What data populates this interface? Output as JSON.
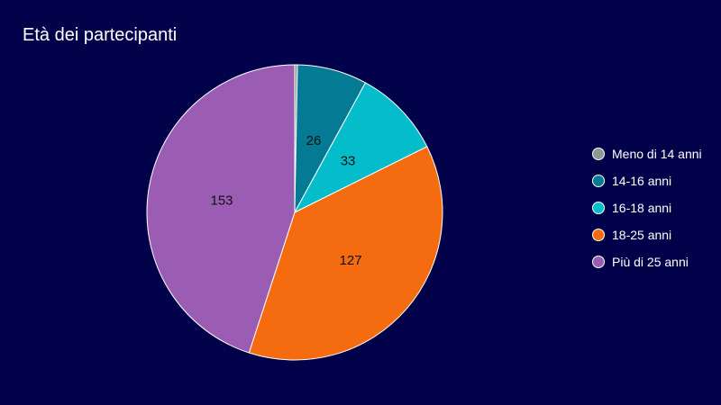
{
  "chart_data": {
    "type": "pie",
    "title": "Età dei partecipanti",
    "categories": [
      "Meno di 14 anni",
      "14-16 anni",
      "16-18 anni",
      "18-25 anni",
      "Più di 25 anni"
    ],
    "values": [
      1,
      26,
      33,
      127,
      153
    ],
    "value_labels": [
      "",
      "26",
      "33",
      "127",
      "153"
    ],
    "colors": [
      "#8a9a8e",
      "#057a94",
      "#05bccb",
      "#f56c10",
      "#9a5db3"
    ],
    "legend_position": "right",
    "start_angle": "top, clockwise"
  }
}
